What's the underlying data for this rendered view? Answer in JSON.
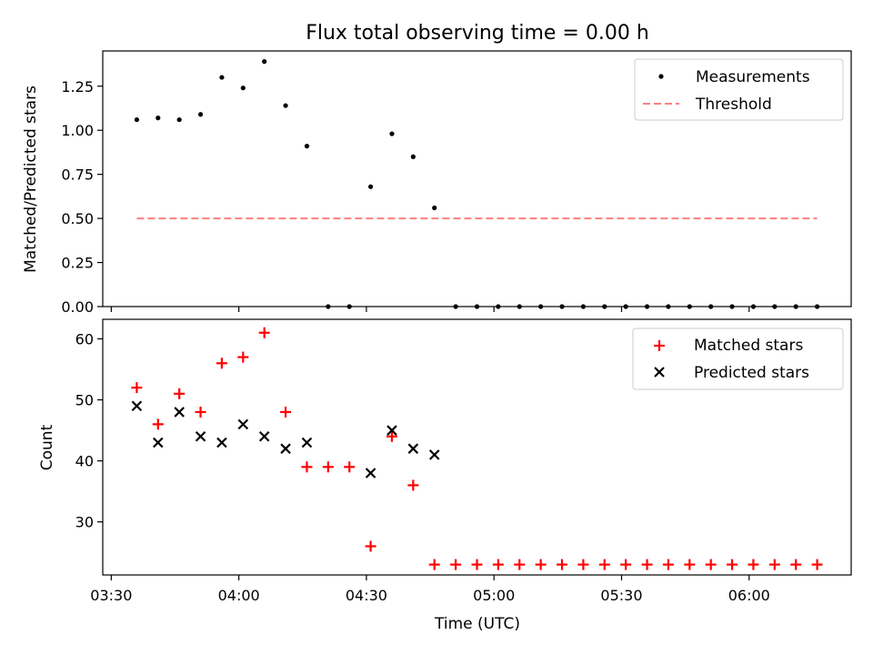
{
  "chart_data": [
    {
      "type": "scatter",
      "title": "Flux total observing time = 0.00 h",
      "xlabel": "",
      "ylabel": "Matched/Predicted stars",
      "ylim": [
        0,
        1.45
      ],
      "xlim": [
        "03:28",
        "06:24"
      ],
      "yticks": [
        0.0,
        0.25,
        0.5,
        0.75,
        1.0,
        1.25
      ],
      "ytick_labels": [
        "0.00",
        "0.25",
        "0.50",
        "0.75",
        "1.00",
        "1.25"
      ],
      "legend": "top-right",
      "x": [
        "03:36",
        "03:41",
        "03:46",
        "03:51",
        "03:56",
        "04:01",
        "04:06",
        "04:11",
        "04:16",
        "04:21",
        "04:26",
        "04:31",
        "04:36",
        "04:41",
        "04:46",
        "04:51",
        "04:56",
        "05:01",
        "05:06",
        "05:11",
        "05:16",
        "05:21",
        "05:26",
        "05:31",
        "05:36",
        "05:41",
        "05:46",
        "05:51",
        "05:56",
        "06:01",
        "06:06",
        "06:11",
        "06:16"
      ],
      "series": [
        {
          "name": "Measurements",
          "marker": "dot",
          "color": "#000000",
          "values": [
            1.06,
            1.07,
            1.06,
            1.09,
            1.3,
            1.24,
            1.39,
            1.14,
            0.91,
            0.0,
            0.0,
            0.68,
            0.98,
            0.85,
            0.56,
            0.0,
            0.0,
            0.0,
            0.0,
            0.0,
            0.0,
            0.0,
            0.0,
            0.0,
            0.0,
            0.0,
            0.0,
            0.0,
            0.0,
            0.0,
            0.0,
            0.0,
            0.0
          ]
        },
        {
          "name": "Threshold",
          "marker": "dashed-line",
          "color": "#ff7f7f",
          "x_range": [
            "03:36",
            "06:16"
          ],
          "value": 0.5
        }
      ]
    },
    {
      "type": "scatter",
      "title": "",
      "xlabel": "Time (UTC)",
      "ylabel": "Count",
      "ylim": [
        21.3,
        63.2
      ],
      "xlim": [
        "03:28",
        "06:24"
      ],
      "yticks": [
        30,
        40,
        50,
        60
      ],
      "ytick_labels": [
        "30",
        "40",
        "50",
        "60"
      ],
      "xticks": [
        "03:30",
        "04:00",
        "04:30",
        "05:00",
        "05:30",
        "06:00"
      ],
      "xtick_labels": [
        "03:30",
        "04:00",
        "04:30",
        "05:00",
        "05:30",
        "06:00"
      ],
      "legend": "top-right",
      "x": [
        "03:36",
        "03:41",
        "03:46",
        "03:51",
        "03:56",
        "04:01",
        "04:06",
        "04:11",
        "04:16",
        "04:21",
        "04:26",
        "04:31",
        "04:36",
        "04:41",
        "04:46",
        "04:51",
        "04:56",
        "05:01",
        "05:06",
        "05:11",
        "05:16",
        "05:21",
        "05:26",
        "05:31",
        "05:36",
        "05:41",
        "05:46",
        "05:51",
        "05:56",
        "06:01",
        "06:06",
        "06:11",
        "06:16"
      ],
      "series": [
        {
          "name": "Matched stars",
          "marker": "plus",
          "color": "#ff0000",
          "values": [
            52,
            46,
            51,
            48,
            56,
            57,
            61,
            48,
            39,
            39,
            39,
            26,
            44,
            36,
            23,
            23,
            23,
            23,
            23,
            23,
            23,
            23,
            23,
            23,
            23,
            23,
            23,
            23,
            23,
            23,
            23,
            23,
            23
          ]
        },
        {
          "name": "Predicted stars",
          "marker": "x",
          "color": "#000000",
          "x": [
            "03:36",
            "03:41",
            "03:46",
            "03:51",
            "03:56",
            "04:01",
            "04:06",
            "04:11",
            "04:16",
            "04:31",
            "04:36",
            "04:41",
            "04:46"
          ],
          "values": [
            49,
            43,
            48,
            44,
            43,
            46,
            44,
            42,
            43,
            38,
            45,
            42,
            41
          ]
        }
      ]
    }
  ]
}
